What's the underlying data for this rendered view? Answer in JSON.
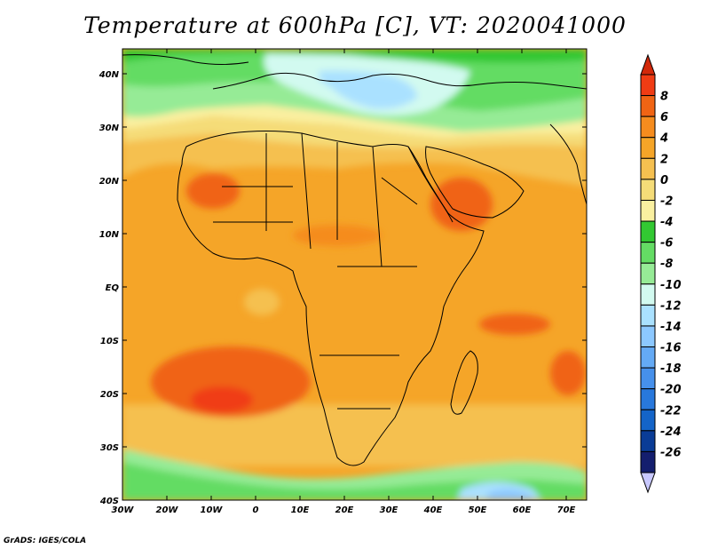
{
  "title": "Temperature at 600hPa [C], VT: 2020041000",
  "credit": "GrADS: IGES/COLA",
  "lat_labels": [
    "40N",
    "30N",
    "20N",
    "10N",
    "EQ",
    "10S",
    "20S",
    "30S",
    "40S"
  ],
  "lon_labels": [
    "30W",
    "20W",
    "10W",
    "0",
    "10E",
    "20E",
    "30E",
    "40E",
    "50E",
    "60E",
    "70E"
  ],
  "colorbar": {
    "labels": [
      "8",
      "6",
      "4",
      "2",
      "0",
      "-2",
      "-4",
      "-6",
      "-8",
      "-10",
      "-12",
      "-14",
      "-16",
      "-18",
      "-20",
      "-22",
      "-24",
      "-26"
    ],
    "colors": [
      "#f03c14",
      "#f06414",
      "#f58c1e",
      "#f5a528",
      "#f5c050",
      "#f5dc78",
      "#faf0a0",
      "#32c832",
      "#64dc64",
      "#96eb96",
      "#d2faf0",
      "#aae1ff",
      "#8cc8ff",
      "#64aaf5",
      "#4690eb",
      "#2878dc",
      "#1464c8",
      "#0a3c96",
      "#141e6e"
    ],
    "top_color": "#d2280a",
    "bottom_color": "#c8c8ff"
  }
}
